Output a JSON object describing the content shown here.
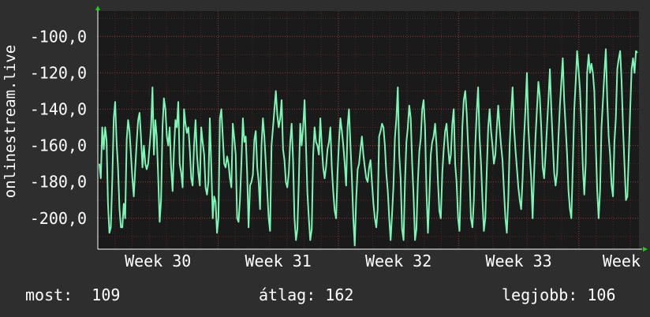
{
  "chart_data": {
    "type": "line",
    "ylabel": "onlinestream.live",
    "ylim": [
      -217,
      -86
    ],
    "y_ticks": [
      -100,
      -120,
      -140,
      -160,
      -180,
      -200
    ],
    "y_tick_labels": [
      "-100,0",
      "-120,0",
      "-140,0",
      "-160,0",
      "-180,0",
      "-200,0"
    ],
    "x_tick_labels": [
      "Week 30",
      "Week 31",
      "Week 32",
      "Week 33",
      "Week"
    ],
    "x_tick_positions": [
      0.5,
      1.5,
      2.5,
      3.5,
      4.5
    ],
    "xlim": [
      0,
      4.5
    ],
    "grid": true,
    "colors": {
      "background": "#2e2e2e",
      "plot_background": "#1a1a1a",
      "grid": "#3c3c3c",
      "grid_minor": "#5a2626",
      "line": "#7cf5b5",
      "axis_arrow": "#22cc22"
    },
    "series": [
      {
        "values": [
          -170,
          -178,
          -150,
          -162,
          -150,
          -157,
          -192,
          -208,
          -205,
          -178,
          -145,
          -136,
          -158,
          -172,
          -195,
          -205,
          -205,
          -192,
          -200,
          -157,
          -146,
          -152,
          -165,
          -178,
          -188,
          -172,
          -158,
          -146,
          -142,
          -155,
          -172,
          -160,
          -170,
          -173,
          -170,
          -160,
          -150,
          -128,
          -165,
          -146,
          -155,
          -178,
          -202,
          -190,
          -150,
          -134,
          -140,
          -155,
          -160,
          -150,
          -172,
          -185,
          -162,
          -146,
          -150,
          -136,
          -170,
          -175,
          -183,
          -140,
          -148,
          -153,
          -150,
          -162,
          -178,
          -182,
          -160,
          -146,
          -165,
          -175,
          -182,
          -150,
          -158,
          -165,
          -183,
          -187,
          -180,
          -145,
          -172,
          -200,
          -188,
          -191,
          -208,
          -200,
          -145,
          -140,
          -155,
          -170,
          -172,
          -166,
          -170,
          -178,
          -183,
          -148,
          -156,
          -165,
          -200,
          -202,
          -190,
          -170,
          -145,
          -158,
          -155,
          -175,
          -205,
          -182,
          -180,
          -176,
          -157,
          -152,
          -172,
          -180,
          -195,
          -160,
          -145,
          -155,
          -170,
          -185,
          -200,
          -207,
          -160,
          -150,
          -140,
          -130,
          -143,
          -150,
          -145,
          -135,
          -162,
          -168,
          -180,
          -183,
          -175,
          -158,
          -148,
          -168,
          -200,
          -212,
          -206,
          -180,
          -148,
          -160,
          -150,
          -135,
          -160,
          -186,
          -200,
          -212,
          -206,
          -165,
          -150,
          -158,
          -160,
          -165,
          -145,
          -160,
          -172,
          -178,
          -172,
          -162,
          -158,
          -150,
          -172,
          -185,
          -196,
          -200,
          -175,
          -158,
          -145,
          -152,
          -160,
          -170,
          -182,
          -150,
          -140,
          -160,
          -178,
          -200,
          -215,
          -190,
          -173,
          -170,
          -162,
          -155,
          -165,
          -172,
          -178,
          -180,
          -172,
          -168,
          -180,
          -192,
          -200,
          -205,
          -195,
          -155,
          -152,
          -148,
          -150,
          -160,
          -175,
          -185,
          -200,
          -212,
          -198,
          -182,
          -156,
          -145,
          -128,
          -165,
          -178,
          -206,
          -212,
          -180,
          -158,
          -150,
          -138,
          -145,
          -170,
          -188,
          -212,
          -206,
          -180,
          -163,
          -156,
          -140,
          -135,
          -150,
          -186,
          -208,
          -188,
          -165,
          -158,
          -155,
          -148,
          -160,
          -180,
          -196,
          -200,
          -175,
          -162,
          -152,
          -148,
          -160,
          -170,
          -165,
          -148,
          -140,
          -170,
          -180,
          -200,
          -207,
          -180,
          -150,
          -135,
          -130,
          -142,
          -160,
          -176,
          -200,
          -205,
          -190,
          -160,
          -142,
          -128,
          -155,
          -170,
          -190,
          -207,
          -200,
          -175,
          -150,
          -140,
          -152,
          -160,
          -170,
          -165,
          -150,
          -138,
          -150,
          -160,
          -168,
          -185,
          -200,
          -208,
          -190,
          -160,
          -142,
          -128,
          -150,
          -162,
          -172,
          -183,
          -190,
          -195,
          -178,
          -156,
          -140,
          -120,
          -150,
          -165,
          -178,
          -200,
          -175,
          -155,
          -140,
          -125,
          -133,
          -150,
          -172,
          -178,
          -165,
          -150,
          -135,
          -118,
          -140,
          -158,
          -175,
          -182,
          -175,
          -155,
          -138,
          -125,
          -112,
          -135,
          -150,
          -165,
          -185,
          -195,
          -200,
          -170,
          -140,
          -125,
          -108,
          -118,
          -130,
          -150,
          -172,
          -187,
          -170,
          -120,
          -110,
          -120,
          -115,
          -120,
          -130,
          -160,
          -185,
          -200,
          -185,
          -150,
          -135,
          -120,
          -107,
          -135,
          -155,
          -165,
          -182,
          -188,
          -158,
          -145,
          -118,
          -112,
          -108,
          -125,
          -150,
          -170,
          -190,
          -188,
          -165,
          -140,
          -118,
          -112,
          -120,
          -108,
          -109
        ]
      }
    ]
  },
  "legend": {
    "now": "most:  109",
    "avg": "átlag: 162",
    "best": "legjobb: 106"
  }
}
